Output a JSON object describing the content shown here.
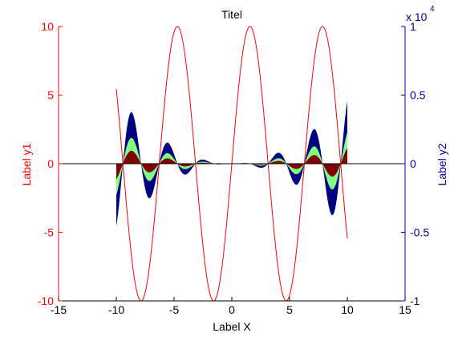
{
  "chart_data": {
    "type": "area",
    "title": "Titel",
    "xlabel": "Label X",
    "ylabel_left": "Label y1",
    "ylabel_right": "Label y2",
    "xlim": [
      -15,
      15
    ],
    "ylim_left": [
      -10,
      10
    ],
    "ylim_right": [
      -1,
      1
    ],
    "right_axis_exponent": "x 10",
    "right_axis_exponent_power": "4",
    "xticks": [
      "-15",
      "-10",
      "-5",
      "0",
      "5",
      "10",
      "15"
    ],
    "yticks_left": [
      "-10",
      "-5",
      "0",
      "5",
      "10"
    ],
    "yticks_right": [
      "-1",
      "-0.5",
      "0",
      "0.5",
      "1"
    ],
    "grid": false,
    "colors": {
      "left_axis": "#ff0000",
      "right_axis": "#0000a0",
      "line": "#ff0000",
      "area_bottom": "#800000",
      "area_middle": "#80ff80",
      "area_top": "#000080"
    },
    "series": [
      {
        "axis": "left",
        "kind": "line",
        "x": [
          -10,
          -9.5,
          -9,
          -8.5,
          -8,
          -7.5,
          -7,
          -6.5,
          -6,
          -5.5,
          -5,
          -4.5,
          -4,
          -3.5,
          -3,
          -2.5,
          -2,
          -1.5,
          -1,
          -0.5,
          0,
          0.5,
          1,
          1.5,
          2,
          2.5,
          3,
          3.5,
          4,
          4.5,
          5,
          5.5,
          6,
          6.5,
          7,
          7.5,
          8,
          8.5,
          9,
          9.5,
          10
        ],
        "values": [
          5.4,
          0.8,
          -4.1,
          -8.0,
          -9.9,
          -9.4,
          -6.6,
          -2.2,
          2.8,
          7.1,
          9.6,
          9.8,
          7.6,
          3.5,
          -1.4,
          -6.0,
          -9.1,
          -10.0,
          -8.4,
          -4.8,
          0.0,
          4.8,
          8.4,
          10.0,
          9.1,
          6.0,
          1.4,
          -3.5,
          -7.6,
          -9.8,
          -9.6,
          -7.1,
          -2.8,
          2.2,
          6.6,
          9.4,
          9.9,
          8.0,
          4.1,
          -0.8,
          -5.4
        ]
      },
      {
        "axis": "right",
        "kind": "stacked-area",
        "x": [
          -10,
          -9.5,
          -9,
          -8.5,
          -8,
          -7.5,
          -7,
          -6.5,
          -6,
          -5.5,
          -5,
          -4.5,
          -4,
          -3.5,
          -3,
          -2.5,
          -2,
          -1.5,
          -1,
          -0.5,
          0,
          0.5,
          1,
          1.5,
          2,
          2.5,
          3,
          3.5,
          4,
          4.5,
          5,
          5.5,
          6,
          6.5,
          7,
          7.5,
          8,
          8.5,
          9,
          9.5,
          10
        ],
        "values": [
          -1375,
          -199,
          1001,
          1836,
          2000,
          1719,
          1045,
          288,
          -405,
          -905,
          -1000,
          -815,
          -532,
          -192,
          75,
          236,
          245,
          178,
          85,
          22,
          0,
          22,
          85,
          178,
          245,
          236,
          75,
          -192,
          -532,
          -815,
          -1000,
          -905,
          -405,
          288,
          1045,
          1719,
          2000,
          1836,
          1001,
          -199,
          -1375
        ],
        "stack_multipliers": [
          1,
          1,
          2
        ]
      }
    ]
  }
}
